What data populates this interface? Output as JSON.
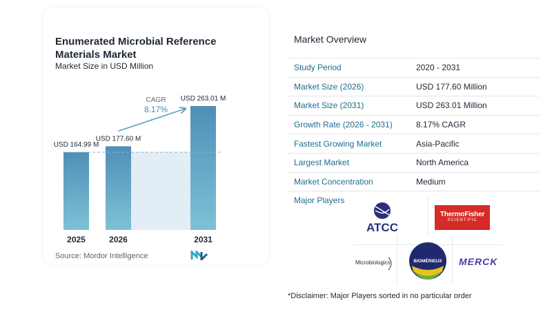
{
  "chart_data": {
    "type": "bar",
    "title": "Enumerated Microbial Reference Materials Market",
    "subtitle": "Market Size in USD Million",
    "categories": [
      "2025",
      "2026",
      "2031"
    ],
    "values": [
      164.99,
      177.6,
      263.01
    ],
    "value_labels": [
      "USD 164.99 M",
      "USD 177.60 M",
      "USD 263.01 M"
    ],
    "cagr_label": "CAGR",
    "cagr_value": "8.17%",
    "ylim": [
      0,
      263.01
    ],
    "colors": {
      "bar": "#5a9fc2",
      "bar_top": "#4f8fb8",
      "bar_bottom": "#7cc2d6",
      "shade": "#e2edf5",
      "arrow": "#5a9fc2",
      "cagr_text": "#3e8bb3"
    }
  },
  "source": "Source:  Mordor Intelligence",
  "overview": {
    "title": "Market Overview",
    "rows": [
      {
        "label": "Study Period",
        "value": "2020 - 2031"
      },
      {
        "label": "Market Size (2026)",
        "value": "USD 177.60 Million"
      },
      {
        "label": "Market Size (2031)",
        "value": "USD 263.01 Million"
      },
      {
        "label": "Growth Rate (2026 - 2031)",
        "value": "8.17% CAGR"
      },
      {
        "label": "Fastest Growing Market",
        "value": "Asia-Pacific"
      },
      {
        "label": "Largest Market",
        "value": "North America"
      },
      {
        "label": "Market Concentration",
        "value": "Medium"
      }
    ]
  },
  "players": {
    "label": "Major Players",
    "logos": {
      "atcc": "ATCC",
      "thermo_main": "ThermoFisher",
      "thermo_sub": "SCIENTIFIC",
      "biomerieux": "BIOMÉRIEUX",
      "microbiologics": "Microbiologics",
      "merck": "MERCK"
    }
  },
  "disclaimer": "*Disclaimer: Major Players sorted in no particular order"
}
